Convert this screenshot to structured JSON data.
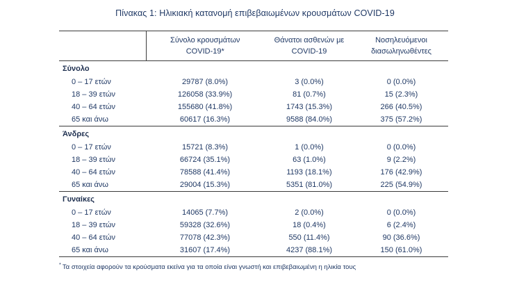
{
  "title": "Πίνακας 1: Ηλικιακή κατανομή επιβεβαιωμένων κρουσμάτων COVID-19",
  "table": {
    "columns": [
      {
        "line1": "Σύνολο κρουσμάτων",
        "line2": "COVID-19*"
      },
      {
        "line1": "Θάνατοι ασθενών με",
        "line2": "COVID-19"
      },
      {
        "line1": "Νοσηλευόμενοι",
        "line2": "διασωληνωθέντες"
      }
    ],
    "sections": [
      {
        "label": "Σύνολο",
        "rows": [
          {
            "age": "0 – 17 ετών",
            "cases": "29787 (8.0%)",
            "deaths": "3 (0.0%)",
            "intubated": "0 (0.0%)"
          },
          {
            "age": "18 – 39 ετών",
            "cases": "126058 (33.9%)",
            "deaths": "81 (0.7%)",
            "intubated": "15 (2.3%)"
          },
          {
            "age": "40 – 64 ετών",
            "cases": "155680 (41.8%)",
            "deaths": "1743 (15.3%)",
            "intubated": "266 (40.5%)"
          },
          {
            "age": "65 και άνω",
            "cases": "60617 (16.3%)",
            "deaths": "9588 (84.0%)",
            "intubated": "375 (57.2%)"
          }
        ]
      },
      {
        "label": "Άνδρες",
        "rows": [
          {
            "age": "0 – 17 ετών",
            "cases": "15721 (8.3%)",
            "deaths": "1 (0.0%)",
            "intubated": "0 (0.0%)"
          },
          {
            "age": "18 – 39 ετών",
            "cases": "66724 (35.1%)",
            "deaths": "63 (1.0%)",
            "intubated": "9 (2.2%)"
          },
          {
            "age": "40 – 64 ετών",
            "cases": "78588 (41.4%)",
            "deaths": "1193 (18.1%)",
            "intubated": "176 (42.9%)"
          },
          {
            "age": "65 και άνω",
            "cases": "29004 (15.3%)",
            "deaths": "5351 (81.0%)",
            "intubated": "225 (54.9%)"
          }
        ]
      },
      {
        "label": "Γυναίκες",
        "rows": [
          {
            "age": "0 – 17 ετών",
            "cases": "14065 (7.7%)",
            "deaths": "2 (0.0%)",
            "intubated": "0 (0.0%)"
          },
          {
            "age": "18 – 39 ετών",
            "cases": "59328 (32.6%)",
            "deaths": "18 (0.4%)",
            "intubated": "6 (2.4%)"
          },
          {
            "age": "40 – 64 ετών",
            "cases": "77078 (42.3%)",
            "deaths": "550 (11.4%)",
            "intubated": "90 (36.6%)"
          },
          {
            "age": "65 και άνω",
            "cases": "31607 (17.4%)",
            "deaths": "4237 (88.1%)",
            "intubated": "150 (61.0%)"
          }
        ]
      }
    ]
  },
  "footnote": {
    "marker": "*",
    "text": "Τα στοιχεία αφορούν τα κρούσματα εκείνα για τα οποία είναι γνωστή και επιβεβαιωμένη η ηλικία τους"
  }
}
